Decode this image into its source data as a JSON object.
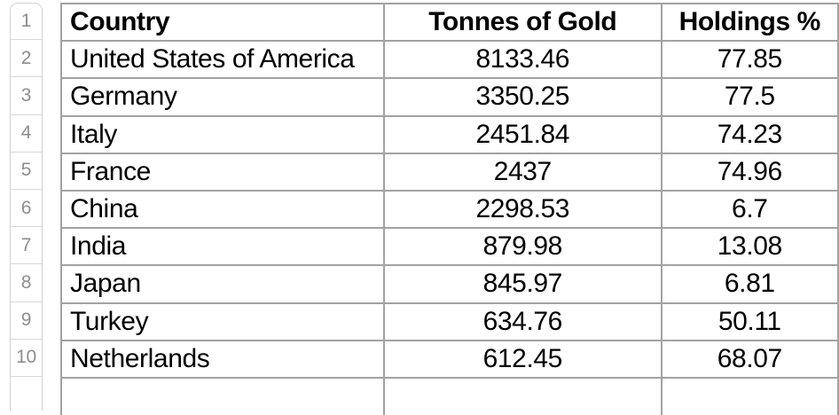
{
  "gutter": {
    "numbers": [
      "1",
      "2",
      "3",
      "4",
      "5",
      "6",
      "7",
      "8",
      "9",
      "10"
    ]
  },
  "table": {
    "headers": [
      "Country",
      "Tonnes of Gold",
      "Holdings %"
    ],
    "rows": [
      {
        "country": "United States of America",
        "tonnes": "8133.46",
        "holdings": "77.85"
      },
      {
        "country": "Germany",
        "tonnes": "3350.25",
        "holdings": "77.5"
      },
      {
        "country": "Italy",
        "tonnes": "2451.84",
        "holdings": "74.23"
      },
      {
        "country": "France",
        "tonnes": "2437",
        "holdings": "74.96"
      },
      {
        "country": "China",
        "tonnes": "2298.53",
        "holdings": "6.7"
      },
      {
        "country": "India",
        "tonnes": "879.98",
        "holdings": "13.08"
      },
      {
        "country": "Japan",
        "tonnes": "845.97",
        "holdings": "6.81"
      },
      {
        "country": "Turkey",
        "tonnes": "634.76",
        "holdings": "50.11"
      },
      {
        "country": "Netherlands",
        "tonnes": "612.45",
        "holdings": "68.07"
      }
    ]
  },
  "colors": {
    "grid_border": "#a2a2a2",
    "gutter_border": "#d2d2d2",
    "row_number_text": "#8e8e8e",
    "cell_text": "#000000",
    "background": "#ffffff"
  }
}
